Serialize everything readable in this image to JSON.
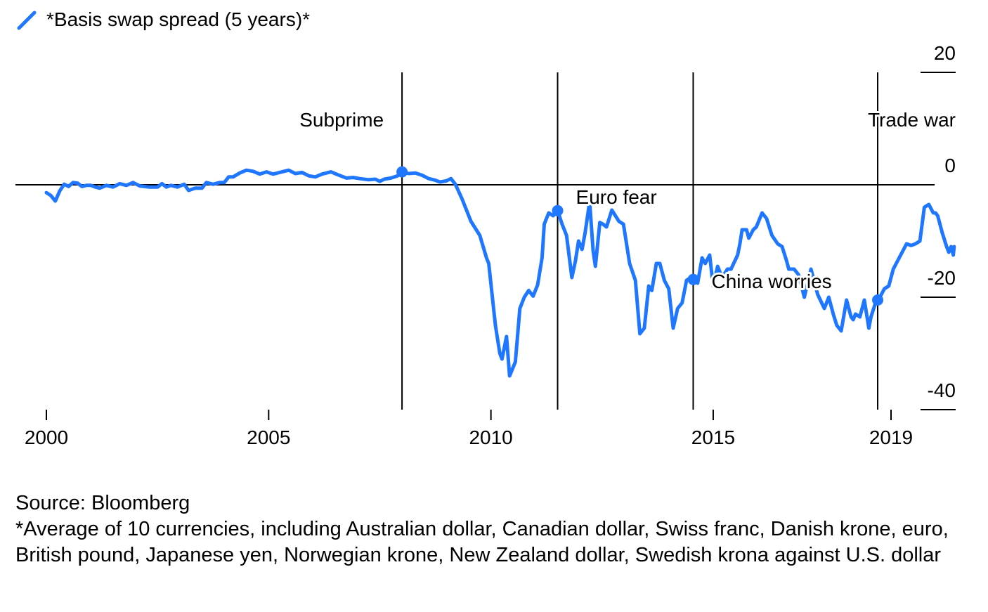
{
  "legend": {
    "label": "*Basis swap spread (5 years)*",
    "color": "#1f77ff",
    "icon": "line-swatch-icon"
  },
  "footer": {
    "source": "Source: Bloomberg",
    "note": "*Average of 10 currencies, including Australian dollar, Canadian dollar, Swiss franc, Danish krone, euro, British pound, Japanese yen, Norwegian krone, New Zealand dollar, Swedish krona against U.S. dollar"
  },
  "chart_data": {
    "type": "line",
    "title": "",
    "xlabel": "",
    "ylabel": "",
    "xlim": [
      1999.95,
      2020.15
    ],
    "ylim": [
      -40,
      20
    ],
    "x_ticks": [
      2000,
      2005,
      2010,
      2015,
      2019
    ],
    "y_ticks": [
      20,
      0,
      -20,
      -40
    ],
    "y_axis_side": "right",
    "zero_line": true,
    "grid": false,
    "series": [
      {
        "name": "*Basis swap spread (5 years)*",
        "color": "#1f77ff",
        "points": [
          [
            2000.0,
            -1.4
          ],
          [
            2000.1,
            -1.9
          ],
          [
            2000.2,
            -2.9
          ],
          [
            2000.3,
            -1.1
          ],
          [
            2000.4,
            0.1
          ],
          [
            2000.5,
            -0.3
          ],
          [
            2000.6,
            0.4
          ],
          [
            2000.7,
            0.3
          ],
          [
            2000.8,
            -0.3
          ],
          [
            2000.9,
            -0.1
          ],
          [
            2001.0,
            -0.1
          ],
          [
            2001.1,
            -0.4
          ],
          [
            2001.2,
            -0.6
          ],
          [
            2001.35,
            -0.1
          ],
          [
            2001.5,
            -0.4
          ],
          [
            2001.65,
            0.2
          ],
          [
            2001.8,
            -0.1
          ],
          [
            2001.95,
            0.4
          ],
          [
            2002.1,
            -0.2
          ],
          [
            2002.3,
            -0.4
          ],
          [
            2002.5,
            -0.4
          ],
          [
            2002.6,
            0.2
          ],
          [
            2002.7,
            -0.4
          ],
          [
            2002.8,
            -0.1
          ],
          [
            2002.95,
            -0.4
          ],
          [
            2003.1,
            0.1
          ],
          [
            2003.2,
            -1.0
          ],
          [
            2003.35,
            -0.6
          ],
          [
            2003.5,
            -0.6
          ],
          [
            2003.6,
            0.4
          ],
          [
            2003.75,
            0.1
          ],
          [
            2003.9,
            0.4
          ],
          [
            2004.0,
            0.4
          ],
          [
            2004.1,
            1.4
          ],
          [
            2004.2,
            1.4
          ],
          [
            2004.35,
            2.1
          ],
          [
            2004.5,
            2.6
          ],
          [
            2004.65,
            2.4
          ],
          [
            2004.8,
            1.9
          ],
          [
            2004.95,
            2.3
          ],
          [
            2005.1,
            1.9
          ],
          [
            2005.3,
            2.3
          ],
          [
            2005.45,
            2.6
          ],
          [
            2005.6,
            2.0
          ],
          [
            2005.75,
            2.2
          ],
          [
            2005.9,
            1.6
          ],
          [
            2006.05,
            1.4
          ],
          [
            2006.2,
            1.9
          ],
          [
            2006.4,
            2.3
          ],
          [
            2006.55,
            1.8
          ],
          [
            2006.75,
            1.2
          ],
          [
            2006.9,
            1.3
          ],
          [
            2007.05,
            1.1
          ],
          [
            2007.25,
            0.9
          ],
          [
            2007.4,
            1.0
          ],
          [
            2007.5,
            0.6
          ],
          [
            2007.6,
            1.0
          ],
          [
            2007.75,
            1.2
          ],
          [
            2007.9,
            1.6
          ],
          [
            2008.0,
            2.3
          ],
          [
            2008.15,
            2.0
          ],
          [
            2008.3,
            2.1
          ],
          [
            2008.45,
            1.7
          ],
          [
            2008.6,
            1.1
          ],
          [
            2008.75,
            0.8
          ],
          [
            2008.85,
            0.5
          ],
          [
            2009.0,
            0.7
          ],
          [
            2009.1,
            1.1
          ],
          [
            2009.2,
            0.1
          ],
          [
            2009.35,
            -2.5
          ],
          [
            2009.55,
            -6.5
          ],
          [
            2009.75,
            -9.0
          ],
          [
            2009.9,
            -13.0
          ],
          [
            2009.95,
            -14.0
          ],
          [
            2010.1,
            -25.0
          ],
          [
            2010.2,
            -30.0
          ],
          [
            2010.25,
            -31.0
          ],
          [
            2010.35,
            -27.0
          ],
          [
            2010.42,
            -34.0
          ],
          [
            2010.55,
            -31.5
          ],
          [
            2010.65,
            -22.0
          ],
          [
            2010.75,
            -20.0
          ],
          [
            2010.85,
            -18.8
          ],
          [
            2010.95,
            -19.8
          ],
          [
            2011.05,
            -17.8
          ],
          [
            2011.15,
            -13.0
          ],
          [
            2011.2,
            -7.0
          ],
          [
            2011.3,
            -5.0
          ],
          [
            2011.4,
            -5.5
          ],
          [
            2011.5,
            -4.6
          ],
          [
            2011.6,
            -7.0
          ],
          [
            2011.7,
            -9.0
          ],
          [
            2011.82,
            -16.5
          ],
          [
            2011.9,
            -13.6
          ],
          [
            2011.97,
            -10.0
          ],
          [
            2012.05,
            -11.5
          ],
          [
            2012.12,
            -8.5
          ],
          [
            2012.22,
            -3.0
          ],
          [
            2012.3,
            -11.8
          ],
          [
            2012.35,
            -14.5
          ],
          [
            2012.45,
            -6.7
          ],
          [
            2012.52,
            -7.0
          ],
          [
            2012.6,
            -7.5
          ],
          [
            2012.72,
            -4.5
          ],
          [
            2012.88,
            -6.5
          ],
          [
            2012.98,
            -7.0
          ],
          [
            2013.12,
            -14.0
          ],
          [
            2013.25,
            -17.0
          ],
          [
            2013.35,
            -26.5
          ],
          [
            2013.45,
            -25.5
          ],
          [
            2013.55,
            -18.0
          ],
          [
            2013.62,
            -18.8
          ],
          [
            2013.72,
            -14.0
          ],
          [
            2013.8,
            -14.0
          ],
          [
            2013.9,
            -17.0
          ],
          [
            2014.0,
            -18.5
          ],
          [
            2014.1,
            -25.5
          ],
          [
            2014.2,
            -22.0
          ],
          [
            2014.3,
            -21.0
          ],
          [
            2014.4,
            -17.0
          ],
          [
            2014.5,
            -16.5
          ],
          [
            2014.65,
            -17.5
          ],
          [
            2014.75,
            -13.0
          ],
          [
            2014.82,
            -14.0
          ],
          [
            2014.92,
            -12.5
          ],
          [
            2015.0,
            -18.0
          ],
          [
            2015.1,
            -14.5
          ],
          [
            2015.2,
            -16.5
          ],
          [
            2015.32,
            -15.0
          ],
          [
            2015.4,
            -15.0
          ],
          [
            2015.55,
            -12.5
          ],
          [
            2015.6,
            -10.5
          ],
          [
            2015.65,
            -8.0
          ],
          [
            2015.75,
            -8.0
          ],
          [
            2015.8,
            -9.5
          ],
          [
            2015.9,
            -8.0
          ],
          [
            2015.97,
            -7.5
          ],
          [
            2016.1,
            -5.0
          ],
          [
            2016.2,
            -6.0
          ],
          [
            2016.32,
            -9.0
          ],
          [
            2016.45,
            -10.5
          ],
          [
            2016.55,
            -11.0
          ],
          [
            2016.65,
            -13.5
          ],
          [
            2016.7,
            -15.0
          ],
          [
            2016.82,
            -15.0
          ],
          [
            2016.92,
            -16.0
          ],
          [
            2017.05,
            -20.0
          ],
          [
            2017.2,
            -15.0
          ],
          [
            2017.35,
            -19.5
          ],
          [
            2017.5,
            -22.0
          ],
          [
            2017.6,
            -20.0
          ],
          [
            2017.7,
            -23.0
          ],
          [
            2017.78,
            -25.0
          ],
          [
            2017.88,
            -26.0
          ],
          [
            2018.0,
            -20.5
          ],
          [
            2018.1,
            -23.5
          ],
          [
            2018.15,
            -24.0
          ],
          [
            2018.2,
            -23.0
          ],
          [
            2018.3,
            -23.5
          ],
          [
            2018.4,
            -20.5
          ],
          [
            2018.5,
            -25.5
          ],
          [
            2018.55,
            -23.5
          ],
          [
            2018.65,
            -21.0
          ],
          [
            2018.75,
            -20.0
          ],
          [
            2018.85,
            -18.5
          ],
          [
            2018.95,
            -18.0
          ],
          [
            2019.05,
            -15.0
          ],
          [
            2019.15,
            -13.5
          ],
          [
            2019.25,
            -12.0
          ],
          [
            2019.35,
            -10.5
          ],
          [
            2019.45,
            -10.8
          ],
          [
            2019.55,
            -10.5
          ],
          [
            2019.65,
            -10.0
          ],
          [
            2019.75,
            -4.0
          ],
          [
            2019.85,
            -3.5
          ],
          [
            2019.95,
            -5.0
          ],
          [
            2020.0,
            -5.0
          ],
          [
            2020.05,
            -5.5
          ],
          [
            2020.15,
            -8.5
          ],
          [
            2020.25,
            -11.0
          ],
          [
            2020.3,
            -12.0
          ],
          [
            2020.35,
            -11.0
          ],
          [
            2020.4,
            -12.5
          ],
          [
            2020.42,
            -11.0
          ]
        ]
      }
    ],
    "event_lines": [
      {
        "x": 2008.0,
        "label": "Subprime",
        "label_side": "left"
      },
      {
        "x": 2011.5,
        "label": "Euro fear",
        "label_side": "right"
      },
      {
        "x": 2014.55,
        "label": "China worries",
        "label_side": "right"
      },
      {
        "x": 2018.7,
        "label": "Trade war",
        "label_side": "right"
      }
    ]
  }
}
